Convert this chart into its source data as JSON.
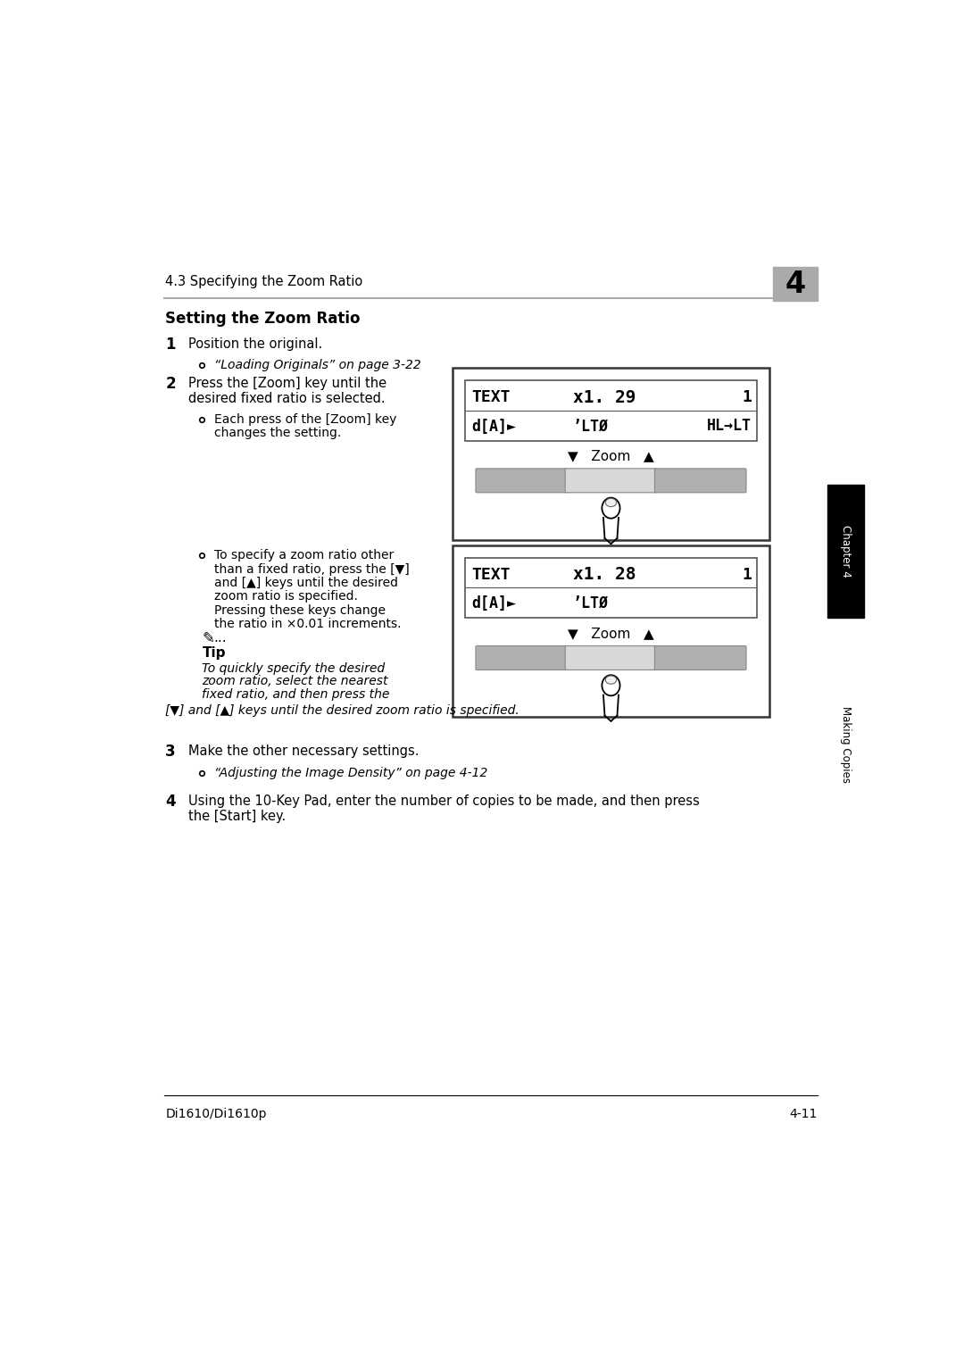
{
  "page_bg": "#ffffff",
  "header_text": "4.3 Specifying the Zoom Ratio",
  "chapter_num": "4",
  "title": "Setting the Zoom Ratio",
  "step1_num": "1",
  "step1_text": "Position the original.",
  "step1_sub": "“Loading Originals” on page 3-22",
  "step2_num": "2",
  "step2_text1": "Press the [Zoom] key until the",
  "step2_text2": "desired fixed ratio is selected.",
  "step2_sub1": "Each press of the [Zoom] key",
  "step2_sub2": "changes the setting.",
  "display1_line1_left": "TEXT",
  "display1_line1_mid": "x1. 29",
  "display1_line1_right": "1",
  "display1_line2_left": "d[A]►",
  "display1_line2_mid": "ʼLTØ",
  "display1_line2_right": "HL→LT",
  "step2_sub3_1": "To specify a zoom ratio other",
  "step2_sub3_2": "than a fixed ratio, press the [▼]",
  "step2_sub3_3": "and [▲] keys until the desired",
  "step2_sub3_4": "zoom ratio is specified.",
  "step2_sub3_5": "Pressing these keys change",
  "step2_sub3_6": "the ratio in ×0.01 increments.",
  "display2_line1_left": "TEXT",
  "display2_line1_mid": "x1. 28",
  "display2_line1_right": "1",
  "display2_line2_left": "d[A]►",
  "display2_line2_mid": "ʼLTØ",
  "tip_label": "Tip",
  "tip_text1": "To quickly specify the desired",
  "tip_text2": "zoom ratio, select the nearest",
  "tip_text3": "fixed ratio, and then press the",
  "tip_text4": "[▼] and [▲] keys until the desired zoom ratio is specified.",
  "step3_num": "3",
  "step3_text": "Make the other necessary settings.",
  "step3_sub": "“Adjusting the Image Density” on page 4-12",
  "step4_num": "4",
  "step4_text1": "Using the 10-Key Pad, enter the number of copies to be made, and then press",
  "step4_text2": "the [Start] key.",
  "footer_left": "Di1610/Di1610p",
  "footer_right": "4-11",
  "sidebar_ch_text": "Chapter 4",
  "sidebar_mc_text": "Making Copies",
  "sidebar_bg": "#000000",
  "sidebar_text_color": "#ffffff",
  "header_line_color": "#aaaaaa",
  "chapter_box_color": "#aaaaaa"
}
